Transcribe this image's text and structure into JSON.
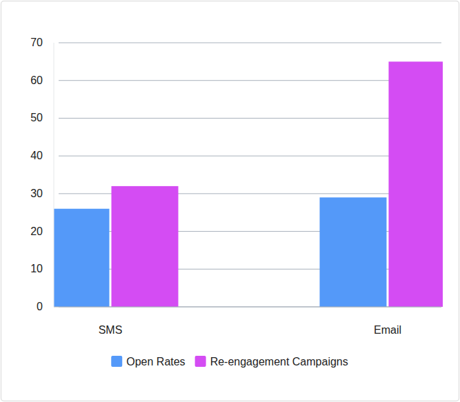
{
  "chart_data": {
    "type": "bar",
    "categories": [
      "SMS",
      "Email"
    ],
    "series": [
      {
        "name": "Open Rates",
        "color": "#5499f9",
        "values": [
          26,
          29
        ]
      },
      {
        "name": "Re-engagement Campaigns",
        "color": "#d44cf3",
        "values": [
          32,
          65
        ]
      }
    ],
    "ylim": [
      0,
      70
    ],
    "yticks": [
      0,
      10,
      20,
      30,
      40,
      50,
      60,
      70
    ],
    "grid": true,
    "legend": "bottom"
  }
}
